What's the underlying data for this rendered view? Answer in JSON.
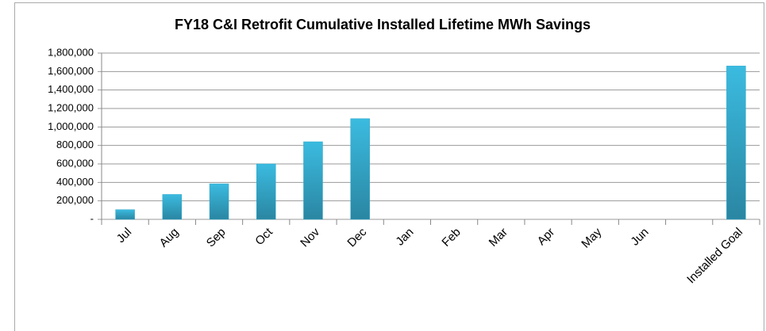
{
  "chart_data": {
    "type": "bar",
    "title": "FY18 C&I Retrofit Cumulative Installed Lifetime MWh Savings",
    "categories": [
      "Jul",
      "Aug",
      "Sep",
      "Oct",
      "Nov",
      "Dec",
      "Jan",
      "Feb",
      "Mar",
      "Apr",
      "May",
      "Jun",
      null,
      "Installed Goal"
    ],
    "values": [
      105000,
      270000,
      385000,
      600000,
      840000,
      1090000,
      null,
      null,
      null,
      null,
      null,
      null,
      null,
      1660000
    ],
    "color": "#31a9cc",
    "ylim": [
      0,
      1800000
    ],
    "yticks": [
      {
        "value": 0,
        "label": "-"
      },
      {
        "value": 200000,
        "label": "200,000"
      },
      {
        "value": 400000,
        "label": "400,000"
      },
      {
        "value": 600000,
        "label": "600,000"
      },
      {
        "value": 800000,
        "label": "800,000"
      },
      {
        "value": 1000000,
        "label": "1,000,000"
      },
      {
        "value": 1200000,
        "label": "1,200,000"
      },
      {
        "value": 1400000,
        "label": "1,400,000"
      },
      {
        "value": 1600000,
        "label": "1,600,000"
      },
      {
        "value": 1800000,
        "label": "1,800,000"
      }
    ],
    "grid": true
  }
}
